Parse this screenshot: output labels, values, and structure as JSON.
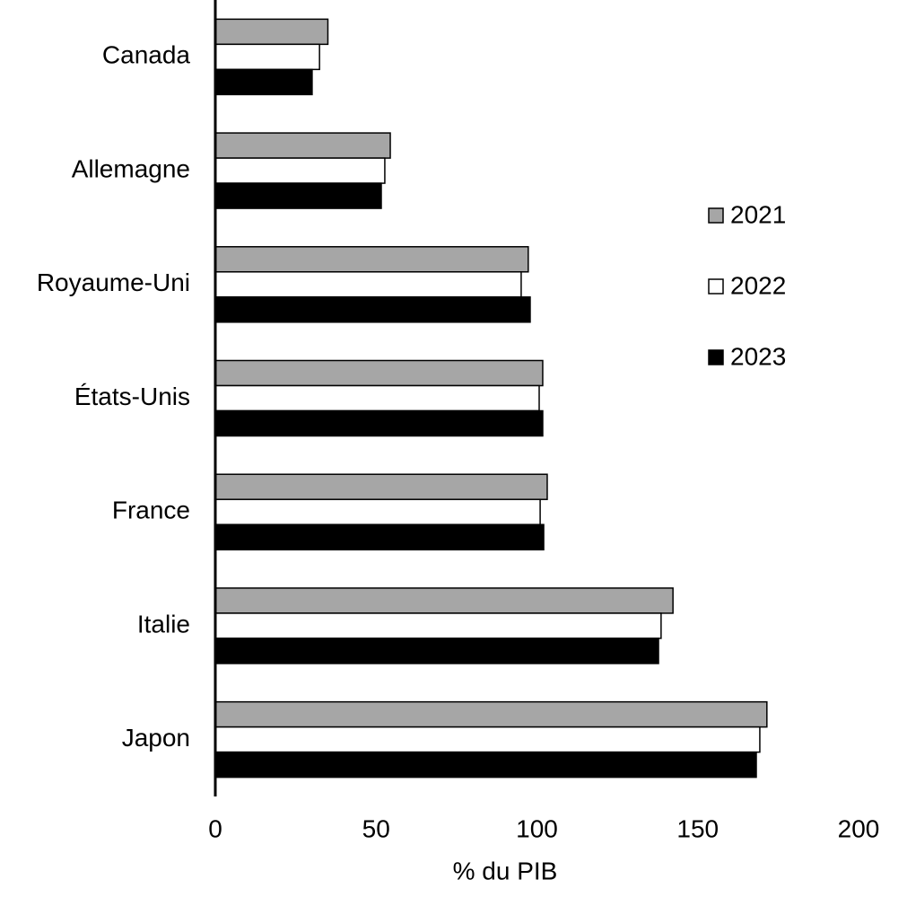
{
  "chart_data": {
    "type": "hbar",
    "x_label": "% du PIB",
    "categories": [
      "Canada",
      "Allemagne",
      "Royaume-Uni",
      "États-Unis",
      "France",
      "Italie",
      "Japon"
    ],
    "series": [
      {
        "name": "2021",
        "color": "#a6a6a6",
        "values": [
          35,
          54.4,
          97.3,
          101.8,
          103.2,
          142.3,
          171.5
        ]
      },
      {
        "name": "2022",
        "color": "#ffffff",
        "values": [
          32.4,
          52.7,
          95.1,
          100.7,
          101,
          138.6,
          169.3
        ]
      },
      {
        "name": "2023",
        "color": "#000000",
        "values": [
          30.1,
          51.6,
          97.9,
          101.8,
          102.1,
          137.8,
          168.2
        ]
      }
    ],
    "xlim": [
      0,
      200
    ],
    "xticks": [
      0,
      50,
      100,
      150,
      200
    ],
    "grid": false,
    "legend": "right"
  }
}
